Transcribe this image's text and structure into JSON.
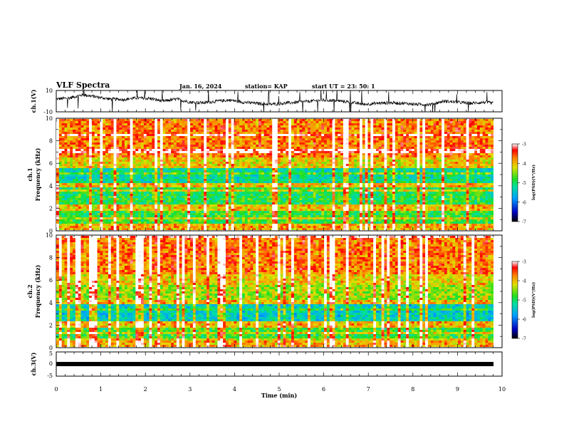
{
  "header": {
    "title": "VLF Spectra",
    "date": "Jan. 16, 2024",
    "station": "station= KAP",
    "start": "start UT =  23: 50: 1"
  },
  "chart_data": [
    {
      "type": "line",
      "panel": "ch1-waveform",
      "ylabel": "ch.1(V)",
      "ylim": [
        -10,
        10
      ],
      "yticks": [
        "10",
        "-10"
      ],
      "xlim": [
        0,
        10
      ],
      "note_series_shape": "noisy signal around 0 to +4 V with spikes",
      "series": [
        {
          "x": [
            0,
            0.3,
            0.6,
            0.9,
            1.2,
            1.5,
            1.8,
            2.1,
            2.4,
            2.7,
            3.0,
            3.3,
            3.6,
            3.9,
            4.2,
            4.5,
            4.8,
            5.1,
            5.4,
            5.7,
            6.0,
            6.3,
            6.6,
            6.9,
            7.2,
            7.5,
            7.8,
            8.1,
            8.4,
            8.7,
            9.0,
            9.3,
            9.6,
            9.8
          ],
          "y": [
            2,
            3,
            6,
            4,
            2,
            1.5,
            3,
            2.5,
            0,
            2,
            -1,
            -1.5,
            0,
            1,
            -1,
            -2,
            -3,
            -2,
            -1,
            0,
            1,
            0.5,
            -1,
            -3,
            -2,
            -1.5,
            -2,
            -3,
            -3,
            0,
            -1,
            -2,
            -1,
            -2
          ]
        }
      ]
    },
    {
      "type": "heatmap",
      "panel": "ch1-spectrogram",
      "ylabel": "ch.1\nFrequency (kHz)",
      "ylim": [
        0,
        10
      ],
      "yticks": [
        "0",
        "2",
        "4",
        "6",
        "8",
        "10"
      ],
      "xlim": [
        0,
        10
      ],
      "colorbar": {
        "label": "log(PSD)(V²/Hz)",
        "range": [
          -7,
          -3
        ],
        "ticks": [
          "-3",
          "-4",
          "-5",
          "-6",
          "-7"
        ]
      }
    },
    {
      "type": "heatmap",
      "panel": "ch2-spectrogram",
      "ylabel": "ch.2\nFrequency (kHz)",
      "ylim": [
        0,
        10
      ],
      "yticks": [
        "0",
        "2",
        "4",
        "6",
        "8",
        "10"
      ],
      "xlim": [
        0,
        10
      ],
      "colorbar": {
        "label": "log(PSD)(V²/Hz)",
        "range": [
          -7,
          -3
        ],
        "ticks": [
          "-3",
          "-4",
          "-5",
          "-6",
          "-7"
        ]
      }
    },
    {
      "type": "line",
      "panel": "ch3-waveform",
      "ylabel": "ch.3(V)",
      "ylim": [
        -5,
        5
      ],
      "yticks": [
        "5",
        "0",
        "-5"
      ],
      "xlim": [
        0,
        10
      ],
      "series": [
        {
          "x": [
            0,
            9.8
          ],
          "y": [
            0,
            0
          ]
        }
      ]
    }
  ],
  "xaxis": {
    "label": "Time (min)",
    "ticks": [
      "0",
      "1",
      "2",
      "3",
      "4",
      "5",
      "6",
      "7",
      "8",
      "9",
      "10"
    ]
  }
}
